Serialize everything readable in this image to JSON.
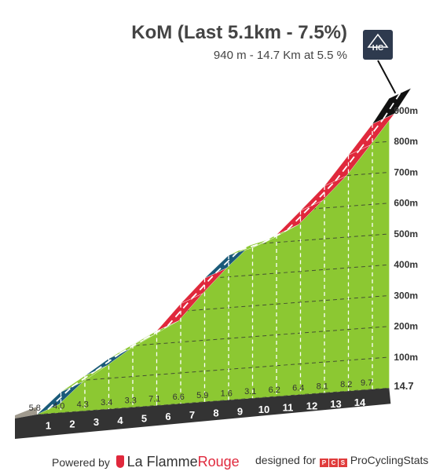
{
  "header": {
    "title": "KoM (Last 5.1km - 7.5%)",
    "subtitle": "940 m - 14.7 Km at 5.5 %"
  },
  "badge": {
    "label": "HC",
    "icon": "mountain-icon"
  },
  "footer": {
    "powered_by": "Powered by",
    "brand_part1": "La Flamme",
    "brand_part2": "Rouge",
    "designed_for": "designed for",
    "pcs_logo": "PCS",
    "pcs_name": "ProCyclingStats"
  },
  "colors": {
    "green": "#8cc832",
    "blue": "#1a5a7a",
    "red": "#e0283c",
    "black": "#111111",
    "base": "#333333",
    "stone": "#a09a8e"
  },
  "chart_data": {
    "type": "area",
    "title": "KoM (Last 5.1km - 7.5%)",
    "xlim": [
      0,
      14.7
    ],
    "ylim": [
      0,
      940
    ],
    "y_ticks": [
      100,
      200,
      300,
      400,
      500,
      600,
      700,
      800,
      900
    ],
    "y_tick_labels": [
      "100m",
      "200m",
      "300m",
      "400m",
      "500m",
      "600m",
      "700m",
      "800m",
      "900m"
    ],
    "km_marks": [
      1,
      2,
      3,
      4,
      5,
      6,
      7,
      8,
      9,
      10,
      11,
      12,
      13,
      14
    ],
    "km_labels": [
      "1",
      "2",
      "3",
      "4",
      "5",
      "6",
      "7",
      "8",
      "9",
      "10",
      "11",
      "12",
      "13",
      "14"
    ],
    "end_label": "14.7",
    "segments": [
      {
        "from": 0,
        "to": 1,
        "gradient": "5.8",
        "category": "blue"
      },
      {
        "from": 1,
        "to": 2,
        "gradient": "4.0",
        "category": "green"
      },
      {
        "from": 2,
        "to": 3,
        "gradient": "4.3",
        "category": "blue"
      },
      {
        "from": 3,
        "to": 4,
        "gradient": "3.4",
        "category": "green"
      },
      {
        "from": 4,
        "to": 5,
        "gradient": "3.3",
        "category": "green"
      },
      {
        "from": 5,
        "to": 6,
        "gradient": "7.1",
        "category": "red"
      },
      {
        "from": 6,
        "to": 7,
        "gradient": "6.6",
        "category": "red"
      },
      {
        "from": 7,
        "to": 8,
        "gradient": "5.9",
        "category": "blue"
      },
      {
        "from": 8,
        "to": 9,
        "gradient": "1.6",
        "category": "green"
      },
      {
        "from": 9,
        "to": 10,
        "gradient": "3.1",
        "category": "green"
      },
      {
        "from": 10,
        "to": 11,
        "gradient": "6.2",
        "category": "red"
      },
      {
        "from": 11,
        "to": 12,
        "gradient": "6.4",
        "category": "red"
      },
      {
        "from": 12,
        "to": 13,
        "gradient": "8.1",
        "category": "red"
      },
      {
        "from": 13,
        "to": 14,
        "gradient": "8.2",
        "category": "red"
      },
      {
        "from": 14,
        "to": 14.7,
        "gradient": "9.7",
        "category": "black"
      }
    ]
  }
}
